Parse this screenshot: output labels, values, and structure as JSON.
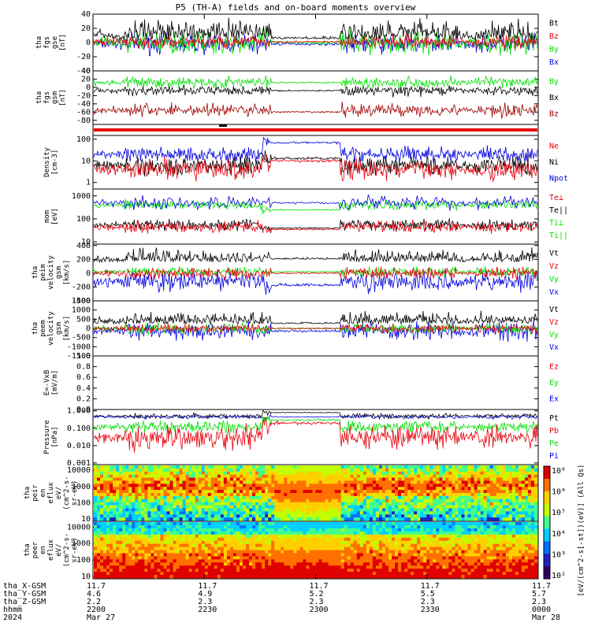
{
  "title": "P5 (TH-A) fields and on-board moments overview",
  "colors": {
    "black": "#000000",
    "red": "#e8000b",
    "green": "#00e000",
    "blue": "#0000e0",
    "darkred": "#a00000",
    "white": "#ffffff"
  },
  "chart_data": [
    {
      "type": "line",
      "name": "fgs-gse",
      "ylabel": [
        "tha",
        "fgs",
        "gse",
        "[nT]"
      ],
      "ylim": [
        -40,
        40
      ],
      "ticks": [
        40,
        20,
        0,
        -20,
        -40
      ],
      "legend": [
        {
          "label": "Bt",
          "color": "black"
        },
        {
          "label": "Bz",
          "color": "red"
        },
        {
          "label": "By",
          "color": "green"
        },
        {
          "label": "Bx",
          "color": "blue"
        }
      ],
      "series_shape": {
        "Bt": {
          "quiet": 4,
          "active": 18,
          "noise": 9
        },
        "Bz": {
          "quiet": 0,
          "active": 0,
          "noise": 7
        },
        "By": {
          "quiet": 0,
          "active": 0,
          "noise": 12
        },
        "Bx": {
          "quiet": 0,
          "active": -5,
          "noise": 10
        }
      }
    },
    {
      "type": "line",
      "name": "fgs-gsm",
      "ylabel": [
        "tha",
        "fgs",
        "gsm",
        "[nT]"
      ],
      "ylim": [
        -90,
        40
      ],
      "ticks": [
        40,
        20,
        0,
        -20,
        -40,
        -60,
        -80
      ],
      "legend": [
        {
          "label": "By",
          "color": "green"
        },
        {
          "label": "Bx",
          "color": "black"
        },
        {
          "label": "Bz",
          "color": "darkred"
        }
      ]
    },
    {
      "type": "line",
      "name": "density",
      "scale": "log",
      "ylabel": [
        "Density",
        "[cm-3]"
      ],
      "ylim": [
        0.5,
        150
      ],
      "ticks": [
        100,
        10,
        1
      ],
      "legend": [
        {
          "label": "Ne",
          "color": "red"
        },
        {
          "label": "Ni",
          "color": "black"
        },
        {
          "label": "Npot",
          "color": "blue"
        }
      ]
    },
    {
      "type": "line",
      "name": "temperature",
      "scale": "log",
      "ylabel": [
        "mom",
        "[eV]"
      ],
      "ylim": [
        8,
        2000
      ],
      "ticks": [
        1000,
        100,
        10
      ],
      "legend": [
        {
          "label": "Te⊥",
          "color": "red"
        },
        {
          "label": "Te||",
          "color": "black"
        },
        {
          "label": "Ti⊥",
          "color": "green"
        },
        {
          "label": "Ti||",
          "color": "green"
        }
      ]
    },
    {
      "type": "line",
      "name": "peim-velocity",
      "ylabel": [
        "tha",
        "peim",
        "velocity",
        "gsm",
        "[km/s]"
      ],
      "ylim": [
        -400,
        420
      ],
      "ticks": [
        400,
        200,
        0,
        -200,
        -400
      ],
      "legend": [
        {
          "label": "Vt",
          "color": "black"
        },
        {
          "label": "Vz",
          "color": "red"
        },
        {
          "label": "Vy",
          "color": "green"
        },
        {
          "label": "Vx",
          "color": "blue"
        }
      ]
    },
    {
      "type": "line",
      "name": "peem-velocity",
      "ylabel": [
        "tha",
        "peem",
        "velocity",
        "gsm",
        "[km/s]"
      ],
      "ylim": [
        -1500,
        1500
      ],
      "ticks": [
        1500,
        1000,
        500,
        0,
        -500,
        -1000,
        -1500
      ],
      "legend": [
        {
          "label": "Vt",
          "color": "black"
        },
        {
          "label": "Vz",
          "color": "red"
        },
        {
          "label": "Vy",
          "color": "green"
        },
        {
          "label": "Vx",
          "color": "blue"
        }
      ]
    },
    {
      "type": "line",
      "name": "efield",
      "ylabel": [
        "E=-VxB",
        "[mV/m]"
      ],
      "ylim": [
        0,
        1
      ],
      "ticks": [
        1.0,
        0.8,
        0.6,
        0.4,
        0.2,
        0.0
      ],
      "legend": [
        {
          "label": "Ez",
          "color": "red"
        },
        {
          "label": "Ey",
          "color": "green"
        },
        {
          "label": "Ex",
          "color": "blue"
        }
      ]
    },
    {
      "type": "line",
      "name": "pressure",
      "scale": "log",
      "ylabel": [
        "Pressure",
        "[nPa]"
      ],
      "ylim": [
        0.0008,
        1.2
      ],
      "ticks": [
        "1.000",
        "0.100",
        "0.010",
        "0.001"
      ],
      "legend": [
        {
          "label": "Pt",
          "color": "black"
        },
        {
          "label": "Pb",
          "color": "red"
        },
        {
          "label": "Pe",
          "color": "green"
        },
        {
          "label": "Pi",
          "color": "blue"
        }
      ]
    },
    {
      "type": "heatmap",
      "name": "peir-eflux",
      "scale": "log",
      "ylabel": [
        "tha",
        "peir",
        "en",
        "eflux",
        "eV/",
        "(cm^2-s-",
        "sr-eV)"
      ],
      "ticks": [
        10000,
        1000,
        100,
        10
      ]
    },
    {
      "type": "heatmap",
      "name": "peer-eflux",
      "scale": "log",
      "ylabel": [
        "tha",
        "peer",
        "en",
        "eflux",
        "eV/",
        "(cm^2-s-",
        "sr-eV)"
      ],
      "ticks": [
        10000,
        1000,
        100,
        10
      ]
    }
  ],
  "colorbar": {
    "ticks": [
      "10⁸",
      "10⁶",
      "10⁵",
      "10⁴",
      "10³",
      "10²"
    ],
    "label": "[eV/(cm^2-s[-st])(eV)] (All Qs)"
  },
  "time_axis": {
    "ticks": [
      "2200",
      "2230",
      "2300",
      "2330",
      "0000"
    ],
    "rows": [
      {
        "label": "tha_X-GSM",
        "values": [
          "11.7",
          "11.7",
          "11.7",
          "11.7",
          "11.7"
        ]
      },
      {
        "label": "tha_Y-GSM",
        "values": [
          "4.6",
          "4.9",
          "5.2",
          "5.5",
          "5.7"
        ]
      },
      {
        "label": "tha_Z-GSM",
        "values": [
          "2.2",
          "2.3",
          "2.3",
          "2.3",
          "2.3"
        ]
      },
      {
        "label": "hhmm",
        "values": [
          "2200",
          "2230",
          "2300",
          "2330",
          "0000"
        ]
      }
    ],
    "year": "2024",
    "start_date": "Mar 27",
    "end_date": "Mar 28"
  }
}
